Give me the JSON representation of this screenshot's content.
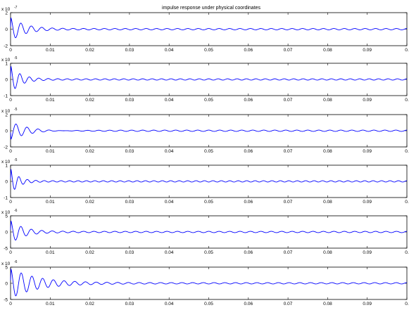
{
  "figure": {
    "title": "impulse response under physical coordinates"
  },
  "chart_data": [
    {
      "type": "line",
      "x_range": [
        0,
        0.1
      ],
      "ylim": [
        -2,
        2
      ],
      "scale": "x 10",
      "exp": "-7",
      "ytick_labels": [
        "2",
        "0",
        "-2"
      ],
      "xtick_labels": [
        "0",
        "0.01",
        "0.02",
        "0.03",
        "0.04",
        "0.05",
        "0.06",
        "0.07",
        "0.08",
        "0.09",
        "0."
      ],
      "series_color": "#0000ff",
      "peak": 1.4,
      "decay": 290,
      "freq": 380
    },
    {
      "type": "line",
      "x_range": [
        0,
        0.1
      ],
      "ylim": [
        -1,
        1
      ],
      "scale": "x 10",
      "exp": "-5",
      "ytick_labels": [
        "1",
        "0",
        "-1"
      ],
      "xtick_labels": [
        "0",
        "0.01",
        "0.02",
        "0.03",
        "0.04",
        "0.05",
        "0.06",
        "0.07",
        "0.08",
        "0.09",
        "0."
      ],
      "series_color": "#0000ff",
      "peak": 0.85,
      "decay": 420,
      "freq": 420
    },
    {
      "type": "line",
      "x_range": [
        0,
        0.1
      ],
      "ylim": [
        -2,
        2
      ],
      "scale": "x 10",
      "exp": "-5",
      "ytick_labels": [
        "2",
        "0",
        "-2"
      ],
      "xtick_labels": [
        "0",
        "0.01",
        "0.02",
        "0.03",
        "0.04",
        "0.05",
        "0.06",
        "0.07",
        "0.08",
        "0.09",
        "0."
      ],
      "series_color": "#0000ff",
      "peak": -1.2,
      "decay": 200,
      "freq": 360
    },
    {
      "type": "line",
      "x_range": [
        0,
        0.1
      ],
      "ylim": [
        -1,
        1
      ],
      "scale": "x 10",
      "exp": "-5",
      "ytick_labels": [
        "1",
        "0",
        "-1"
      ],
      "xtick_labels": [
        "0",
        "0.01",
        "0.02",
        "0.03",
        "0.04",
        "0.05",
        "0.06",
        "0.07",
        "0.08",
        "0.09",
        "0."
      ],
      "series_color": "#0000ff",
      "peak": 0.8,
      "decay": 550,
      "freq": 470
    },
    {
      "type": "line",
      "x_range": [
        0,
        0.1
      ],
      "ylim": [
        -5,
        5
      ],
      "scale": "x 10",
      "exp": "-6",
      "ytick_labels": [
        "5",
        "0",
        "-5"
      ],
      "xtick_labels": [
        "0",
        "0.01",
        "0.02",
        "0.03",
        "0.04",
        "0.05",
        "0.06",
        "0.07",
        "0.08",
        "0.09",
        "0."
      ],
      "series_color": "#0000ff",
      "peak": 3.5,
      "decay": 320,
      "freq": 380
    },
    {
      "type": "line",
      "x_range": [
        0,
        0.1
      ],
      "ylim": [
        -5,
        5
      ],
      "scale": "x 10",
      "exp": "-6",
      "ytick_labels": [
        "5",
        "0",
        "-5"
      ],
      "xtick_labels": [
        "0",
        "0.01",
        "0.02",
        "0.03",
        "0.04",
        "0.05",
        "0.06",
        "0.07",
        "0.08",
        "0.09",
        "0."
      ],
      "series_color": "#0000ff",
      "peak": 4.5,
      "decay": 150,
      "freq": 370
    }
  ]
}
